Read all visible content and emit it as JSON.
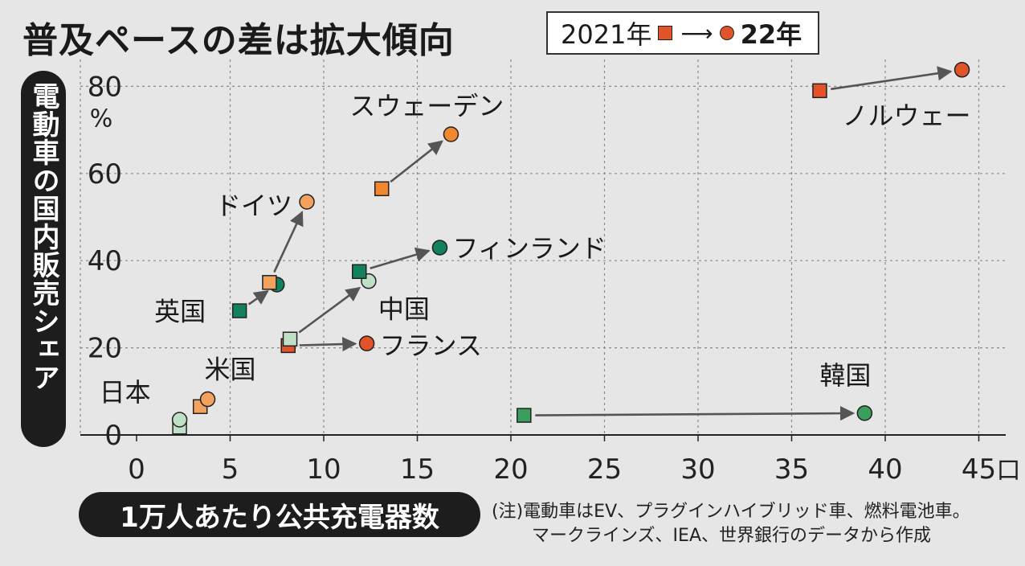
{
  "title": "普及ペースの差は拡大傾向",
  "legend": {
    "from_label": "2021年",
    "to_label": "22年",
    "arrow": "⟶"
  },
  "note": {
    "line1": "(注)電動車はEV、プラグインハイブリッド車、燃料電池車。",
    "line2": "マークラインズ、IEA、世界銀行のデータから作成"
  },
  "chart_data": {
    "type": "scatter",
    "title": "普及ペースの差は拡大傾向",
    "xlabel": "1万人あたり公共充電器数",
    "ylabel": "電動車の国内販売シェア",
    "x_unit": "口",
    "y_unit": "%",
    "xlim": [
      0,
      46
    ],
    "ylim": [
      0,
      85
    ],
    "xticks": [
      "0",
      "5",
      "10",
      "15",
      "20",
      "25",
      "30",
      "35",
      "40",
      "45"
    ],
    "yticks": [
      "0",
      "20",
      "40",
      "60",
      "80"
    ],
    "grid": true,
    "series": [
      {
        "name": "日本",
        "color": "#bfe0c7",
        "from": {
          "x": 2.3,
          "y": 1.8
        },
        "to": {
          "x": 2.3,
          "y": 3.5
        }
      },
      {
        "name": "米国",
        "color": "#f2a25c",
        "from": {
          "x": 3.4,
          "y": 6.5
        },
        "to": {
          "x": 3.8,
          "y": 8.2
        }
      },
      {
        "name": "英国",
        "color": "#13805f",
        "from": {
          "x": 5.5,
          "y": 28.5
        },
        "to": {
          "x": 7.5,
          "y": 34.5
        }
      },
      {
        "name": "ドイツ",
        "color": "#f2a25c",
        "from": {
          "x": 7.1,
          "y": 35.0
        },
        "to": {
          "x": 9.1,
          "y": 53.5
        }
      },
      {
        "name": "フランス",
        "color": "#e2532a",
        "from": {
          "x": 8.1,
          "y": 20.5
        },
        "to": {
          "x": 12.3,
          "y": 21.0
        }
      },
      {
        "name": "中国",
        "color": "#bfe0c7",
        "from": {
          "x": 8.2,
          "y": 22.0
        },
        "to": {
          "x": 12.4,
          "y": 35.3
        }
      },
      {
        "name": "フィンランド",
        "color": "#13805f",
        "from": {
          "x": 11.9,
          "y": 37.5
        },
        "to": {
          "x": 16.2,
          "y": 43.0
        }
      },
      {
        "name": "スウェーデン",
        "color": "#f2872e",
        "from": {
          "x": 13.1,
          "y": 56.5
        },
        "to": {
          "x": 16.8,
          "y": 69.0
        }
      },
      {
        "name": "韓国",
        "color": "#3a9e5c",
        "from": {
          "x": 20.7,
          "y": 4.5
        },
        "to": {
          "x": 38.9,
          "y": 5.0
        }
      },
      {
        "name": "ノルウェー",
        "color": "#e2532a",
        "from": {
          "x": 36.5,
          "y": 79.0
        },
        "to": {
          "x": 44.1,
          "y": 83.8
        }
      }
    ]
  }
}
